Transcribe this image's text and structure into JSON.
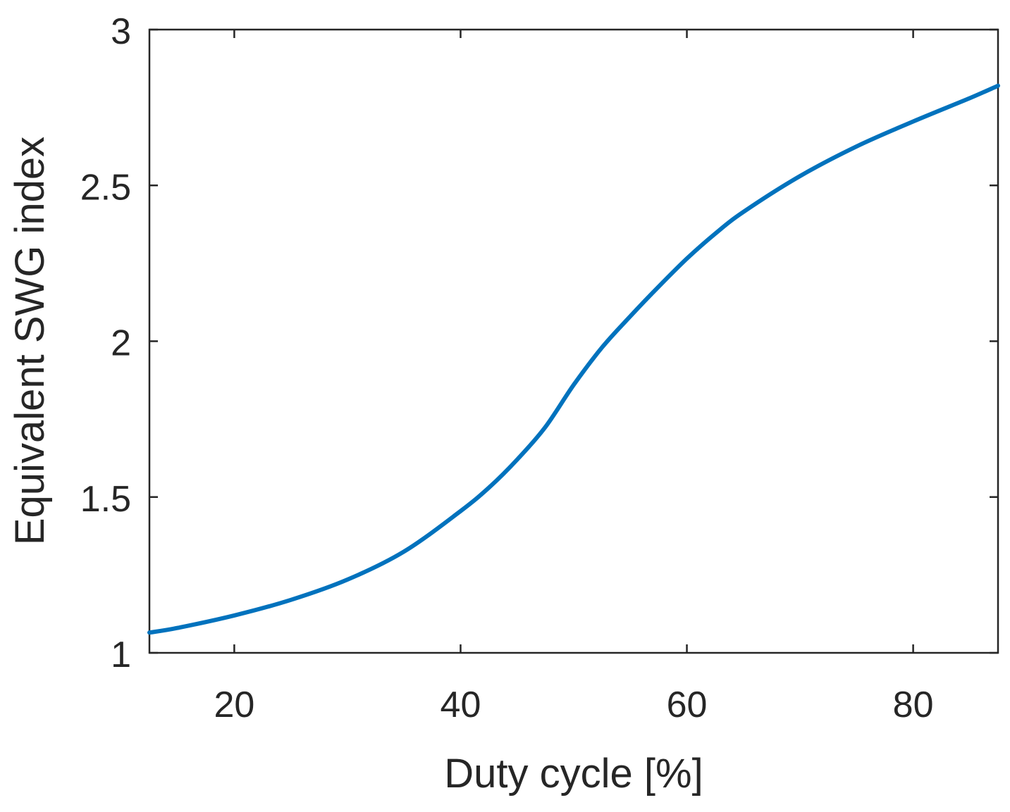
{
  "chart_data": {
    "type": "line",
    "title": "",
    "xlabel": "Duty cycle [%]",
    "ylabel": "Equivalent SWG index",
    "xlim": [
      12.5,
      87.5
    ],
    "ylim": [
      1,
      3
    ],
    "xticks": [
      20,
      40,
      60,
      80
    ],
    "yticks": [
      1,
      1.5,
      2,
      2.5,
      3
    ],
    "xtick_labels": [
      "20",
      "40",
      "60",
      "80"
    ],
    "ytick_labels": [
      "1",
      "1.5",
      "2",
      "2.5",
      "3"
    ],
    "grid": false,
    "legend": "none",
    "box": true,
    "series": [
      {
        "color": "#0072BD",
        "x": [
          12.5,
          15,
          20,
          25,
          30,
          35,
          40,
          42.5,
          45,
          47.5,
          50,
          52.5,
          55,
          57.5,
          60,
          62.5,
          65,
          70,
          75,
          80,
          85,
          87.5
        ],
        "y": [
          1.065,
          1.08,
          1.12,
          1.17,
          1.235,
          1.325,
          1.455,
          1.53,
          1.62,
          1.725,
          1.86,
          1.98,
          2.08,
          2.175,
          2.265,
          2.345,
          2.415,
          2.53,
          2.625,
          2.705,
          2.78,
          2.82
        ]
      }
    ]
  }
}
